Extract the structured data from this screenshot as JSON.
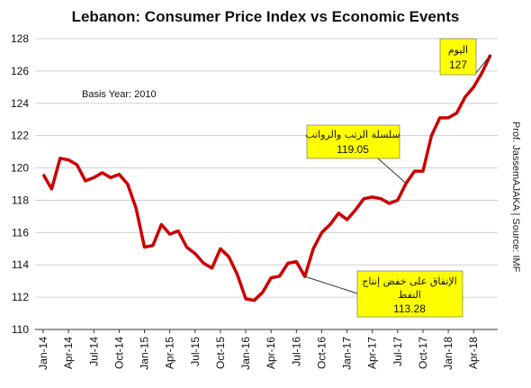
{
  "chart_data": {
    "type": "line",
    "title": "Lebanon: Consumer Price Index vs Economic Events",
    "xlabel": "",
    "ylabel": "",
    "ylim": [
      110,
      128
    ],
    "yticks": [
      110,
      112,
      114,
      116,
      118,
      120,
      122,
      124,
      126,
      128
    ],
    "grid": "horizontal",
    "x_tick_labels": [
      "Jan-14",
      "Apr-14",
      "Jul-14",
      "Oct-14",
      "Jan-15",
      "Apr-15",
      "Jul-15",
      "Oct-15",
      "Jan-16",
      "Apr-16",
      "Jul-16",
      "Oct-16",
      "Jan-17",
      "Apr-17",
      "Jul-17",
      "Oct-17",
      "Jan-18",
      "Apr-18"
    ],
    "series": [
      {
        "color": "#cc0000",
        "x": [
          "Jan-14",
          "Feb-14",
          "Mar-14",
          "Apr-14",
          "May-14",
          "Jun-14",
          "Jul-14",
          "Aug-14",
          "Sep-14",
          "Oct-14",
          "Nov-14",
          "Dec-14",
          "Jan-15",
          "Feb-15",
          "Mar-15",
          "Apr-15",
          "May-15",
          "Jun-15",
          "Jul-15",
          "Aug-15",
          "Sep-15",
          "Oct-15",
          "Nov-15",
          "Dec-15",
          "Jan-16",
          "Feb-16",
          "Mar-16",
          "Apr-16",
          "May-16",
          "Jun-16",
          "Jul-16",
          "Aug-16",
          "Sep-16",
          "Oct-16",
          "Nov-16",
          "Dec-16",
          "Jan-17",
          "Feb-17",
          "Mar-17",
          "Apr-17",
          "May-17",
          "Jun-17",
          "Jul-17",
          "Aug-17",
          "Sep-17",
          "Oct-17",
          "Nov-17",
          "Dec-17",
          "Jan-18",
          "Feb-18",
          "Mar-18",
          "Apr-18",
          "May-18",
          "Jun-18"
        ],
        "values": [
          119.6,
          118.7,
          120.6,
          120.5,
          120.2,
          119.2,
          119.4,
          119.7,
          119.4,
          119.6,
          119.0,
          117.5,
          115.1,
          115.2,
          116.5,
          115.9,
          116.1,
          115.1,
          114.7,
          114.1,
          113.8,
          115.0,
          114.5,
          113.4,
          111.9,
          111.8,
          112.3,
          113.2,
          113.3,
          114.1,
          114.2,
          113.28,
          115.0,
          116.0,
          116.5,
          117.2,
          116.8,
          117.4,
          118.1,
          118.2,
          118.1,
          117.8,
          118.0,
          119.05,
          119.8,
          119.8,
          122.0,
          123.1,
          123.1,
          123.4,
          124.4,
          125.0,
          125.9,
          127.0
        ]
      }
    ],
    "annotations": [
      {
        "line1": "اليوم",
        "value": "127",
        "at": "Jun-18"
      },
      {
        "line1": "سلسلة الرتب والرواتب",
        "value": "119.05",
        "at": "Aug-17"
      },
      {
        "line1": "الإتفاق على خفض إنتاج",
        "line2": "النفط",
        "value": "113.28",
        "at": "Aug-16"
      }
    ],
    "text_notes": {
      "basis": "Basis Year: 2010",
      "source": "Prof. JassemAJAKA | Source: IMF"
    }
  }
}
